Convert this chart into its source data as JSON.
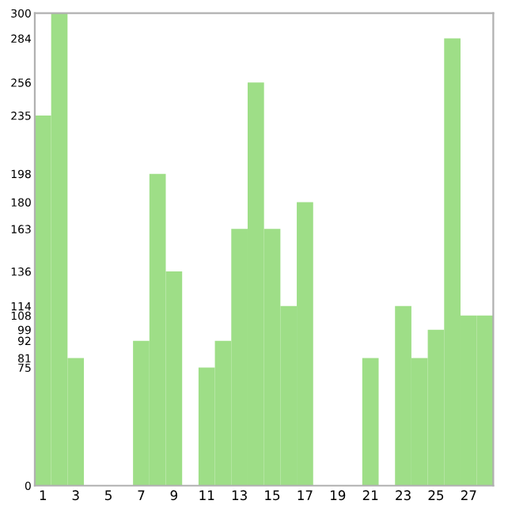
{
  "chart_data": {
    "type": "bar",
    "categories": [
      "1",
      null,
      "3",
      null,
      "5",
      null,
      "7",
      null,
      "9",
      null,
      "11",
      null,
      "13",
      null,
      "15",
      null,
      "17",
      null,
      "19",
      null,
      "21",
      null,
      "23",
      null,
      "25",
      null,
      "27",
      null
    ],
    "values": [
      235,
      300,
      81,
      0,
      0,
      0,
      92,
      198,
      136,
      0,
      75,
      92,
      163,
      256,
      163,
      114,
      180,
      0,
      0,
      0,
      81,
      0,
      114,
      81,
      99,
      284,
      108,
      108
    ],
    "color": "#9ede87",
    "ylim": [
      0,
      300
    ],
    "yticks": [
      0,
      75,
      81,
      92,
      99,
      108,
      114,
      136,
      163,
      180,
      198,
      235,
      256,
      284,
      300
    ],
    "grid": false
  }
}
